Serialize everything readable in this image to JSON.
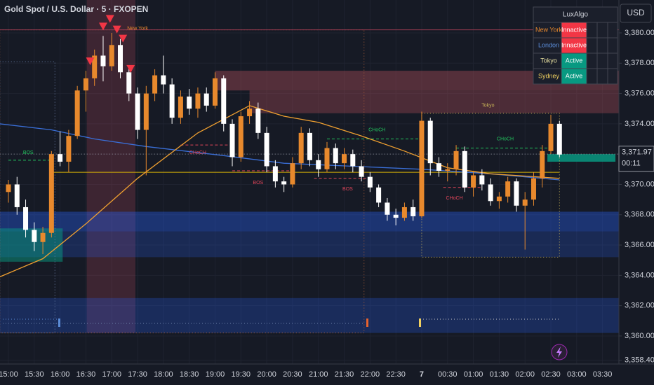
{
  "title": "Gold Spot / U.S. Dollar · 5 · FXOPEN",
  "currency": "USD",
  "chart_data": {
    "type": "candlestick",
    "ylim": [
      3358.15,
      3382.17
    ],
    "yticks": [
      {
        "value": 3358.4,
        "label": "3,358.40"
      },
      {
        "value": 3360,
        "label": "3,360.00"
      },
      {
        "value": 3362,
        "label": "3,362.00"
      },
      {
        "value": 3364,
        "label": "3,364.00"
      },
      {
        "value": 3366,
        "label": "3,366.00"
      },
      {
        "value": 3368,
        "label": "3,368.00"
      },
      {
        "value": 3370,
        "label": "3,370.00"
      },
      {
        "value": 3372,
        "label": "3,372.00"
      },
      {
        "value": 3374,
        "label": "3,374.00"
      },
      {
        "value": 3376,
        "label": "3,376.00"
      },
      {
        "value": 3378,
        "label": "3,378.00"
      },
      {
        "value": 3380,
        "label": "3,380.00"
      }
    ],
    "xticks": [
      {
        "value": 0,
        "label": "15:00"
      },
      {
        "value": 3,
        "label": "15:30"
      },
      {
        "value": 6,
        "label": "16:00"
      },
      {
        "value": 9,
        "label": "16:30"
      },
      {
        "value": 12,
        "label": "17:00"
      },
      {
        "value": 15,
        "label": "17:30"
      },
      {
        "value": 18,
        "label": "18:00"
      },
      {
        "value": 21,
        "label": "18:30"
      },
      {
        "value": 24,
        "label": "19:00"
      },
      {
        "value": 27,
        "label": "19:30"
      },
      {
        "value": 30,
        "label": "20:00"
      },
      {
        "value": 33,
        "label": "20:30"
      },
      {
        "value": 36,
        "label": "21:00"
      },
      {
        "value": 39,
        "label": "21:30"
      },
      {
        "value": 42,
        "label": "22:00"
      },
      {
        "value": 45,
        "label": "22:30"
      },
      {
        "value": 48,
        "label": "7"
      },
      {
        "value": 51,
        "label": "00:30"
      },
      {
        "value": 54,
        "label": "01:00"
      },
      {
        "value": 57,
        "label": "01:30"
      },
      {
        "value": 60,
        "label": "02:00"
      },
      {
        "value": 63,
        "label": "02:30"
      },
      {
        "value": 66,
        "label": "03:00"
      },
      {
        "value": 69,
        "label": "03:30"
      }
    ],
    "candles": {
      "open": [
        3369.5,
        3370,
        3368.5,
        3367,
        3366.2,
        3366.8,
        3372,
        3371.5,
        3373.2,
        3376.2,
        3377,
        3378.5,
        3377.8,
        3379.2,
        3377.4,
        3376,
        3373.6,
        3376,
        3377.2,
        3376.6,
        3374.4,
        3375.8,
        3375,
        3376,
        3375.2,
        3377,
        3374,
        3371.8,
        3374.5,
        3375,
        3373.4,
        3371.2,
        3370.2,
        3370,
        3371.4,
        3373.4,
        3371.6,
        3371,
        3372.4,
        3371.4,
        3372,
        3371.2,
        3370.5,
        3369.8,
        3368.8,
        3368,
        3367.8,
        3368.5,
        3367.9,
        3374.2,
        3371.4,
        3370.9,
        3371,
        3372.2,
        3369.8,
        3370.6,
        3370,
        3368.9,
        3369.2,
        3370.2,
        3368.6,
        3369,
        3370.4,
        3372.2,
        3374
      ],
      "high": [
        3370.3,
        3370.5,
        3369,
        3367.5,
        3367.2,
        3372.2,
        3373.5,
        3373.6,
        3376.5,
        3377.5,
        3378.9,
        3379.8,
        3380,
        3379.6,
        3377.8,
        3376.4,
        3376.5,
        3377.6,
        3378.5,
        3377,
        3376.2,
        3376.3,
        3376.4,
        3376.4,
        3377.4,
        3377.2,
        3374.3,
        3374.8,
        3375.5,
        3375.4,
        3373.8,
        3371.6,
        3370.5,
        3371.8,
        3373.8,
        3373.7,
        3372,
        3372.8,
        3372.7,
        3372.4,
        3372.3,
        3371.6,
        3370.8,
        3370,
        3369.1,
        3368.4,
        3368.8,
        3369,
        3374.8,
        3374.4,
        3371.8,
        3371.4,
        3372.6,
        3372.5,
        3370.9,
        3371,
        3370.4,
        3369.5,
        3370.5,
        3370.4,
        3369.5,
        3370.8,
        3372.6,
        3374.6,
        3374.2
      ],
      "low": [
        3368.8,
        3368,
        3366.5,
        3365.6,
        3365.4,
        3366.5,
        3371.2,
        3370.8,
        3373,
        3374.8,
        3376.5,
        3376.8,
        3377.5,
        3377,
        3375.5,
        3373,
        3370.6,
        3375.5,
        3376,
        3374,
        3374,
        3374.6,
        3374.4,
        3374.8,
        3375,
        3373.5,
        3371.2,
        3371.5,
        3374,
        3373,
        3370.8,
        3369.8,
        3369.5,
        3369.8,
        3371,
        3371.2,
        3370.5,
        3370.8,
        3371,
        3371,
        3370.8,
        3370.2,
        3369.5,
        3368.5,
        3367.6,
        3367.3,
        3367.6,
        3367.6,
        3367.8,
        3370.6,
        3370.5,
        3370.2,
        3370.6,
        3369.5,
        3369.2,
        3369.6,
        3368.6,
        3368.4,
        3368.8,
        3368.2,
        3365.7,
        3368.6,
        3369.8,
        3372,
        3371.8
      ],
      "close": [
        3370,
        3368.5,
        3367,
        3366.2,
        3366.8,
        3372,
        3371.5,
        3373.2,
        3376.2,
        3377,
        3378.5,
        3377.8,
        3379.2,
        3377.4,
        3376,
        3373.6,
        3376,
        3377.2,
        3376.6,
        3374.4,
        3375.8,
        3375,
        3376,
        3375.2,
        3377,
        3374,
        3371.8,
        3374.5,
        3375,
        3373.4,
        3371.2,
        3370.2,
        3370,
        3371.4,
        3373.4,
        3371.6,
        3371,
        3372.4,
        3371.4,
        3372,
        3371.2,
        3370.5,
        3369.8,
        3368.8,
        3368,
        3367.8,
        3368.5,
        3367.9,
        3374.2,
        3371.4,
        3370.9,
        3371,
        3372.2,
        3369.8,
        3370.6,
        3370,
        3368.9,
        3369.2,
        3370.2,
        3368.6,
        3369,
        3370.4,
        3372.2,
        3374,
        3371.97
      ]
    },
    "up_color": "#e8892d",
    "down_color": "#ffffff",
    "lines": [
      {
        "color": "#3a6fd8",
        "x": [
          -1,
          5,
          10,
          16,
          25,
          32,
          40,
          48,
          56,
          64
        ],
        "values": [
          3374,
          3373.6,
          3373,
          3372.5,
          3371.9,
          3371.4,
          3371.2,
          3371,
          3370.7,
          3370.3
        ]
      },
      {
        "color": "#f0a030",
        "x": [
          -1,
          4,
          9,
          15,
          22,
          28,
          32,
          36,
          41,
          46,
          51,
          56,
          64
        ],
        "values": [
          3363.9,
          3365.1,
          3367.4,
          3370.4,
          3373.4,
          3375.2,
          3374.5,
          3374.1,
          3373.2,
          3372.2,
          3371.1,
          3370.7,
          3370.4
        ]
      }
    ],
    "zones": [
      {
        "low": 3360.2,
        "high": 3382.17,
        "from": 9.1,
        "to": 14.75,
        "color": "rgba(178,70,90,0.25)",
        "style": "fill"
      },
      {
        "low": 3365.2,
        "high": 3368.2,
        "from": -1,
        "to": 72,
        "color": "rgba(41,98,255,0.22)",
        "style": "fill"
      },
      {
        "low": 3366.9,
        "high": 3368.2,
        "from": -1,
        "to": 72,
        "color": "rgba(41,98,255,0.18)",
        "style": "fill"
      },
      {
        "low": 3360.2,
        "high": 3362.5,
        "from": -1,
        "to": 72,
        "color": "rgba(41,98,255,0.25)",
        "style": "fill"
      },
      {
        "low": 3376.2,
        "high": 3377.5,
        "from": 24,
        "to": 72,
        "color": "rgba(178,80,90,0.4)",
        "style": "fill"
      },
      {
        "low": 3374.7,
        "high": 3376.2,
        "from": 28,
        "to": 72,
        "color": "rgba(178,80,90,0.35)",
        "style": "fill"
      },
      {
        "low": 3364.9,
        "high": 3367.1,
        "from": -1,
        "to": 6.3,
        "color": "rgba(8,153,129,0.5)",
        "style": "fill"
      },
      {
        "low": 3371.5,
        "high": 3372,
        "from": 62.6,
        "to": 70.5,
        "color": "rgba(8,153,129,0.85)",
        "style": "fill"
      },
      {
        "low": 3365.2,
        "high": 3374.7,
        "from": 48,
        "to": 64,
        "color": "#c9b458",
        "style": "outline"
      },
      {
        "low": 3360.2,
        "high": 3378.1,
        "from": -1,
        "to": 5.4,
        "color": "#6b7fa8",
        "style": "outline"
      },
      {
        "low": 3360.2,
        "high": 3380.2,
        "from": -1,
        "to": 41.3,
        "color": "#b0603a",
        "style": "outline"
      }
    ],
    "levels": [
      {
        "value": 3380.2,
        "from": -1,
        "to": 72,
        "color": "#9c3c52",
        "style": "solid"
      },
      {
        "value": 3370.8,
        "from": 5,
        "to": 64,
        "color": "#d4b106",
        "style": "solid"
      },
      {
        "value": 3372,
        "from": -1,
        "to": 72,
        "color": "#9598a1",
        "style": "dotted"
      },
      {
        "value": 3371.6,
        "from": 0,
        "to": 5,
        "color": "#22c55e",
        "style": "dashed"
      },
      {
        "value": 3372.6,
        "from": 20,
        "to": 26,
        "color": "#e0455a",
        "style": "dashed"
      },
      {
        "value": 3370.9,
        "from": 26,
        "to": 33,
        "color": "#e0455a",
        "style": "dashed"
      },
      {
        "value": 3370.4,
        "from": 35.5,
        "to": 42,
        "color": "#e0455a",
        "style": "dashed"
      },
      {
        "value": 3373,
        "from": 37,
        "to": 48,
        "color": "#22c55e",
        "style": "dashed"
      },
      {
        "value": 3372.4,
        "from": 52,
        "to": 63,
        "color": "#22c55e",
        "style": "dashed"
      },
      {
        "value": 3369.8,
        "from": 50.5,
        "to": 55,
        "color": "#e0455a",
        "style": "dashed"
      }
    ],
    "annotations": [
      {
        "text": "BOS",
        "x": 2.3,
        "y": 3372.1,
        "color": "#22c55e"
      },
      {
        "text": "CHoCH",
        "x": 22,
        "y": 3372.1,
        "color": "#e0455a"
      },
      {
        "text": "BOS",
        "x": 29,
        "y": 3370.1,
        "color": "#e0455a"
      },
      {
        "text": "BOS",
        "x": 39.4,
        "y": 3369.7,
        "color": "#e0455a"
      },
      {
        "text": "CHoCH",
        "x": 42.8,
        "y": 3373.6,
        "color": "#22c55e"
      },
      {
        "text": "CHoCH",
        "x": 57.7,
        "y": 3373,
        "color": "#22c55e"
      },
      {
        "text": "CHoCH",
        "x": 51.8,
        "y": 3369.1,
        "color": "#e0455a"
      },
      {
        "text": "New York",
        "x": 15,
        "y": 3380.3,
        "color": "#e8892d"
      },
      {
        "text": "Tokyo",
        "x": 55.7,
        "y": 3375.2,
        "color": "#c9b458"
      }
    ],
    "signals": {
      "color": "#f23645",
      "x": [
        9.5,
        11,
        11.8,
        12.6,
        13.3,
        14.2
      ],
      "values": [
        3378.1,
        3380.4,
        3380.9,
        3380.2,
        3379.6,
        3377.6
      ]
    },
    "last_price": {
      "value": 3371.97,
      "label": "3,371.97"
    },
    "countdown": "00:11"
  },
  "session_table": {
    "title": "LuxAlgo",
    "rows": [
      {
        "session": "New York",
        "status": "Innactive",
        "color": "#e8892d",
        "status_color": "#f23645"
      },
      {
        "session": "London",
        "status": "Innactive",
        "color": "#5b8dd9",
        "status_color": "#f23645"
      },
      {
        "session": "Tokyo",
        "status": "Active",
        "color": "#e8e0a0",
        "status_color": "#089981"
      },
      {
        "session": "Sydney",
        "status": "Active",
        "color": "#f0d060",
        "status_color": "#089981"
      }
    ]
  }
}
